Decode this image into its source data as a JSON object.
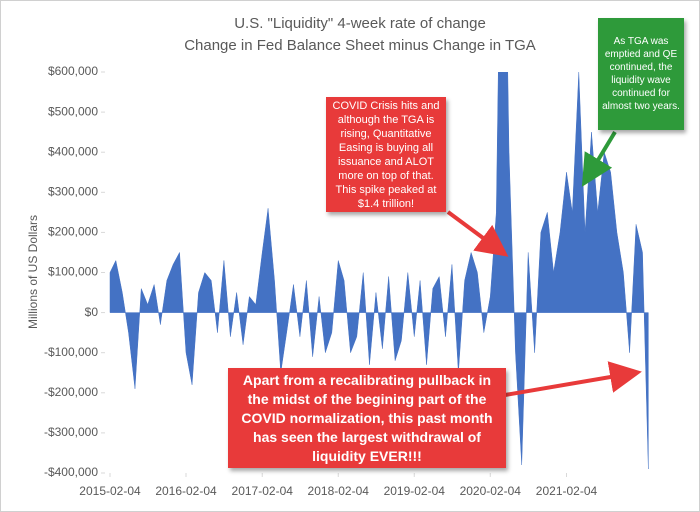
{
  "chart_data": {
    "type": "area",
    "title": "U.S. \"Liquidity\" 4-week rate of change",
    "subtitle": "Change in Fed Balance Sheet minus Change in TGA",
    "y_label": "Millions of US Dollars",
    "color": "#4472c4",
    "x": [
      "2015-02-04",
      "2015-03-04",
      "2015-04-04",
      "2015-05-04",
      "2015-06-04",
      "2015-07-04",
      "2015-08-04",
      "2015-09-04",
      "2015-10-04",
      "2015-11-04",
      "2015-12-04",
      "2016-01-04",
      "2016-02-04",
      "2016-03-04",
      "2016-04-04",
      "2016-05-04",
      "2016-06-04",
      "2016-07-04",
      "2016-08-04",
      "2016-09-04",
      "2016-10-04",
      "2016-11-04",
      "2016-12-04",
      "2017-01-04",
      "2017-02-04",
      "2017-03-04",
      "2017-04-04",
      "2017-05-04",
      "2017-06-04",
      "2017-07-04",
      "2017-08-04",
      "2017-09-04",
      "2017-10-04",
      "2017-11-04",
      "2017-12-04",
      "2018-01-04",
      "2018-02-04",
      "2018-03-04",
      "2018-04-04",
      "2018-05-04",
      "2018-06-04",
      "2018-07-04",
      "2018-08-04",
      "2018-09-04",
      "2018-10-04",
      "2018-11-04",
      "2018-12-04",
      "2019-01-04",
      "2019-02-04",
      "2019-03-04",
      "2019-04-04",
      "2019-05-04",
      "2019-06-04",
      "2019-07-04",
      "2019-08-04",
      "2019-09-04",
      "2019-10-04",
      "2019-11-04",
      "2019-12-04",
      "2020-01-04",
      "2020-02-04",
      "2020-03-04",
      "2020-04-04",
      "2020-05-04",
      "2020-06-04",
      "2020-07-04",
      "2020-08-04",
      "2020-09-04",
      "2020-10-04",
      "2020-11-04",
      "2020-12-04",
      "2021-01-04",
      "2021-02-04",
      "2021-03-04",
      "2021-04-04",
      "2021-05-04",
      "2021-06-04",
      "2021-07-04",
      "2021-08-04",
      "2021-09-04",
      "2021-10-04",
      "2021-11-04",
      "2021-12-04",
      "2022-01-04",
      "2022-02-04",
      "2022-03-04"
    ],
    "values": [
      100000,
      130000,
      50000,
      -50000,
      -190000,
      60000,
      20000,
      70000,
      -30000,
      80000,
      120000,
      150000,
      -100000,
      -180000,
      50000,
      100000,
      80000,
      -50000,
      130000,
      -60000,
      50000,
      -80000,
      40000,
      20000,
      150000,
      260000,
      80000,
      -150000,
      -40000,
      70000,
      -60000,
      80000,
      -110000,
      40000,
      -100000,
      -50000,
      130000,
      80000,
      -100000,
      -60000,
      100000,
      -130000,
      50000,
      -90000,
      90000,
      -120000,
      -70000,
      100000,
      -60000,
      80000,
      -130000,
      60000,
      90000,
      -60000,
      120000,
      -150000,
      80000,
      150000,
      100000,
      -50000,
      40000,
      250000,
      1400000,
      400000,
      -100000,
      -380000,
      150000,
      -100000,
      200000,
      250000,
      100000,
      200000,
      350000,
      250000,
      600000,
      200000,
      450000,
      250000,
      400000,
      350000,
      200000,
      100000,
      -100000,
      220000,
      150000,
      -390000
    ],
    "xlim": [
      "2015-02-04",
      "2022-04-05"
    ],
    "xticks": [
      "2015-02-04",
      "2016-02-04",
      "2017-02-04",
      "2018-02-04",
      "2019-02-04",
      "2020-02-04",
      "2021-02-04"
    ],
    "ylim": [
      -400000,
      600000
    ],
    "yticks": [
      {
        "value": -400000,
        "label": "-$400,000"
      },
      {
        "value": -300000,
        "label": "-$300,000"
      },
      {
        "value": -200000,
        "label": "-$200,000"
      },
      {
        "value": -100000,
        "label": "-$100,000"
      },
      {
        "value": 0,
        "label": "$0"
      },
      {
        "value": 100000,
        "label": "$100,000"
      },
      {
        "value": 200000,
        "label": "$200,000"
      },
      {
        "value": 300000,
        "label": "$300,000"
      },
      {
        "value": 400000,
        "label": "$400,000"
      },
      {
        "value": 500000,
        "label": "$500,000"
      },
      {
        "value": 600000,
        "label": "$600,000"
      }
    ],
    "annotations": [
      {
        "text": "COVID Crisis hits and although the TGA is rising, Quantitative Easing is buying all issuance and ALOT more on top of that. This spike peaked at $1.4 trillion!"
      },
      {
        "text": "As TGA was emptied and QE continued, the liquidity wave continued for almost two years."
      },
      {
        "text": "Apart from a recalibrating pullback in the midst of the begining part of the COVID normalization, this past month has seen the largest withdrawal of liquidity EVER!!!"
      }
    ]
  }
}
